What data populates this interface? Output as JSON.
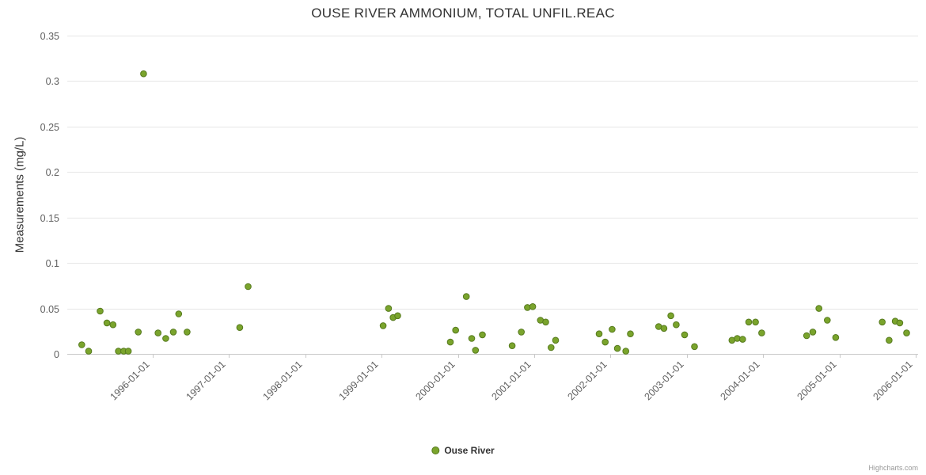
{
  "credits": "Highcharts.com",
  "colors": {
    "marker": "#7AA42C",
    "marker_stroke": "#567A1E",
    "grid": "#E6E6E6",
    "axis_line": "#C9C9C9",
    "title_text": "#333333",
    "label_text": "#606060",
    "credits_text": "#999999"
  },
  "chart_data": {
    "type": "scatter",
    "title": "OUSE RIVER AMMONIUM, TOTAL UNFIL.REAC",
    "xlabel": "",
    "ylabel": "Measurements (mg/L)",
    "ylim": [
      0,
      0.35
    ],
    "xlim": [
      1994.88,
      2006.03
    ],
    "grid": true,
    "legend_position": "bottom",
    "yticks": [
      {
        "v": 0,
        "label": "0"
      },
      {
        "v": 0.05,
        "label": "0.05"
      },
      {
        "v": 0.1,
        "label": "0.1"
      },
      {
        "v": 0.15,
        "label": "0.15"
      },
      {
        "v": 0.2,
        "label": "0.2"
      },
      {
        "v": 0.25,
        "label": "0.25"
      },
      {
        "v": 0.3,
        "label": "0.3"
      },
      {
        "v": 0.35,
        "label": "0.35"
      }
    ],
    "xticks": [
      {
        "v": 1996,
        "label": "1996-01-01"
      },
      {
        "v": 1997,
        "label": "1997-01-01"
      },
      {
        "v": 1998,
        "label": "1998-01-01"
      },
      {
        "v": 1999,
        "label": "1999-01-01"
      },
      {
        "v": 2000,
        "label": "2000-01-01"
      },
      {
        "v": 2001,
        "label": "2001-01-01"
      },
      {
        "v": 2002,
        "label": "2002-01-01"
      },
      {
        "v": 2003,
        "label": "2003-01-01"
      },
      {
        "v": 2004,
        "label": "2004-01-01"
      },
      {
        "v": 2005,
        "label": "2005-01-01"
      },
      {
        "v": 2006,
        "label": "2006-01-01"
      }
    ],
    "series": [
      {
        "name": "Ouse River",
        "color": "#7AA42C",
        "stroke": "#567A1E",
        "points": [
          [
            1995.07,
            0.01
          ],
          [
            1995.16,
            0.003
          ],
          [
            1995.31,
            0.047
          ],
          [
            1995.4,
            0.034
          ],
          [
            1995.48,
            0.032
          ],
          [
            1995.55,
            0.003
          ],
          [
            1995.62,
            0.003
          ],
          [
            1995.68,
            0.003
          ],
          [
            1995.81,
            0.024
          ],
          [
            1995.88,
            0.308
          ],
          [
            1996.07,
            0.023
          ],
          [
            1996.17,
            0.017
          ],
          [
            1996.27,
            0.024
          ],
          [
            1996.34,
            0.044
          ],
          [
            1996.45,
            0.024
          ],
          [
            1997.14,
            0.029
          ],
          [
            1997.25,
            0.074
          ],
          [
            1999.02,
            0.031
          ],
          [
            1999.09,
            0.05
          ],
          [
            1999.15,
            0.04
          ],
          [
            1999.21,
            0.042
          ],
          [
            1999.9,
            0.013
          ],
          [
            1999.97,
            0.026
          ],
          [
            2000.11,
            0.063
          ],
          [
            2000.18,
            0.017
          ],
          [
            2000.23,
            0.004
          ],
          [
            2000.32,
            0.021
          ],
          [
            2000.71,
            0.009
          ],
          [
            2000.83,
            0.024
          ],
          [
            2000.91,
            0.051
          ],
          [
            2000.98,
            0.052
          ],
          [
            2001.08,
            0.037
          ],
          [
            2001.15,
            0.035
          ],
          [
            2001.22,
            0.007
          ],
          [
            2001.28,
            0.015
          ],
          [
            2001.85,
            0.022
          ],
          [
            2001.93,
            0.013
          ],
          [
            2002.02,
            0.027
          ],
          [
            2002.09,
            0.006
          ],
          [
            2002.2,
            0.003
          ],
          [
            2002.26,
            0.022
          ],
          [
            2002.63,
            0.03
          ],
          [
            2002.7,
            0.028
          ],
          [
            2002.79,
            0.042
          ],
          [
            2002.86,
            0.032
          ],
          [
            2002.97,
            0.021
          ],
          [
            2003.1,
            0.008
          ],
          [
            2003.59,
            0.015
          ],
          [
            2003.66,
            0.017
          ],
          [
            2003.73,
            0.016
          ],
          [
            2003.81,
            0.035
          ],
          [
            2003.9,
            0.035
          ],
          [
            2003.98,
            0.023
          ],
          [
            2004.57,
            0.02
          ],
          [
            2004.65,
            0.024
          ],
          [
            2004.73,
            0.05
          ],
          [
            2004.84,
            0.037
          ],
          [
            2004.95,
            0.018
          ],
          [
            2005.56,
            0.035
          ],
          [
            2005.65,
            0.015
          ],
          [
            2005.73,
            0.036
          ],
          [
            2005.79,
            0.034
          ],
          [
            2005.88,
            0.023
          ]
        ]
      }
    ]
  }
}
